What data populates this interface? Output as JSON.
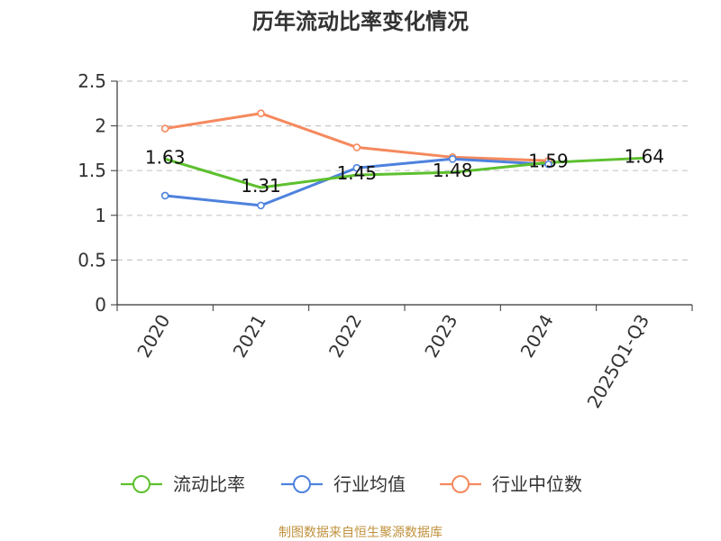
{
  "chart_data": {
    "type": "line",
    "title": "历年流动比率变化情况",
    "categories": [
      "2020",
      "2021",
      "2022",
      "2023",
      "2024",
      "2025Q1-Q3"
    ],
    "y_ticks": [
      "0",
      "0.5",
      "1",
      "1.5",
      "2",
      "2.5"
    ],
    "ylim": [
      0,
      2.5
    ],
    "grid": true,
    "series": [
      {
        "name": "流动比率",
        "color": "#5dc02e",
        "values": [
          1.63,
          1.31,
          1.45,
          1.48,
          1.59,
          1.64
        ],
        "labels": [
          "1.63",
          "1.31",
          "1.45",
          "1.48",
          "1.59",
          "1.64"
        ]
      },
      {
        "name": "行业均值",
        "color": "#4e82dd",
        "values": [
          1.22,
          1.11,
          1.53,
          1.63,
          1.57,
          null
        ]
      },
      {
        "name": "行业中位数",
        "color": "#f5895d",
        "values": [
          1.97,
          2.14,
          1.76,
          1.65,
          1.61,
          null
        ]
      }
    ],
    "legend_position": "bottom",
    "source": "制图数据来自恒生聚源数据库"
  }
}
